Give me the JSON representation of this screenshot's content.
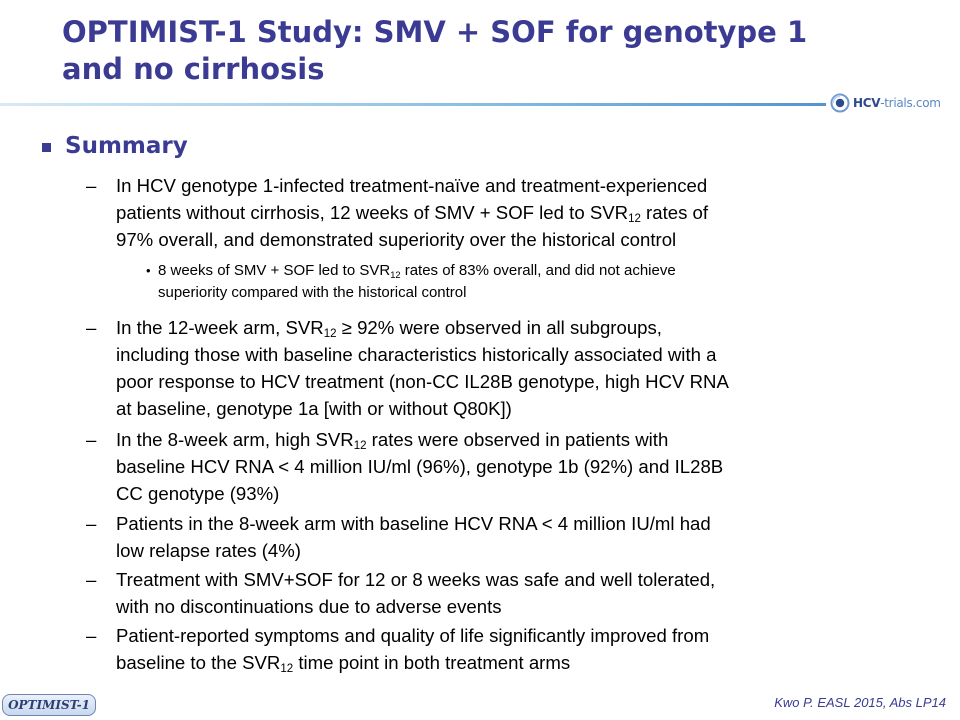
{
  "slide": {
    "title_line1": "OPTIMIST-1 Study: SMV + SOF for genotype 1",
    "title_line2": "and no cirrhosis",
    "logo_text_bold": "HCV",
    "logo_text_rest": "-trials.com",
    "section_heading": "Summary",
    "bullet_char": "–",
    "sub_bullet_char": "•",
    "tag": "OPTIMIST-1",
    "citation": "Kwo P. EASL 2015, Abs LP14",
    "sub_label": "12",
    "bullets": [
      {
        "p1": "In HCV genotype 1-infected treatment-naïve and treatment-experienced",
        "p2_pre": "patients without cirrhosis, 12 weeks of SMV + SOF led to SVR",
        "p2_post": " rates of",
        "p3": "97% overall, and demonstrated superiority over the historical control"
      },
      {
        "sub1_pre": "8 weeks of SMV + SOF led to SVR",
        "sub1_post": " rates of 83% overall, and did not achieve",
        "sub2": "superiority compared with the historical control"
      },
      {
        "p1_pre": "In the 12-week arm, SVR",
        "p1_post": " ≥ 92% were observed in all subgroups,",
        "p2": "including those with baseline characteristics historically associated with a",
        "p3": "poor response to HCV treatment (non-CC IL28B genotype, high HCV RNA",
        "p4": "at baseline, genotype 1a [with or without Q80K])"
      },
      {
        "p1_pre": "In the 8-week arm, high SVR",
        "p1_post": " rates were observed in patients with",
        "p2": "baseline HCV RNA < 4 million IU/ml (96%), genotype 1b (92%) and IL28B",
        "p3": "CC genotype (93%)"
      },
      {
        "p1": "Patients in the 8-week arm with baseline HCV RNA < 4 million IU/ml had",
        "p2": "low relapse rates (4%)"
      },
      {
        "p1": "Treatment with SMV+SOF for 12 or 8 weeks was safe and well tolerated,",
        "p2": "with no discontinuations due to adverse events"
      },
      {
        "p1": "Patient-reported symptoms and quality of life significantly improved from",
        "p2_pre": "baseline to the SVR",
        "p2_post": " time point in both treatment arms"
      }
    ]
  },
  "colors": {
    "title": "#3b3b93",
    "rule_start": "#d7e9f5",
    "rule_end": "#3d86c6",
    "body_text": "#000000"
  },
  "icons": {
    "logo": "hcv-trials-logo-icon",
    "section_bullet": "square-bullet-icon"
  }
}
